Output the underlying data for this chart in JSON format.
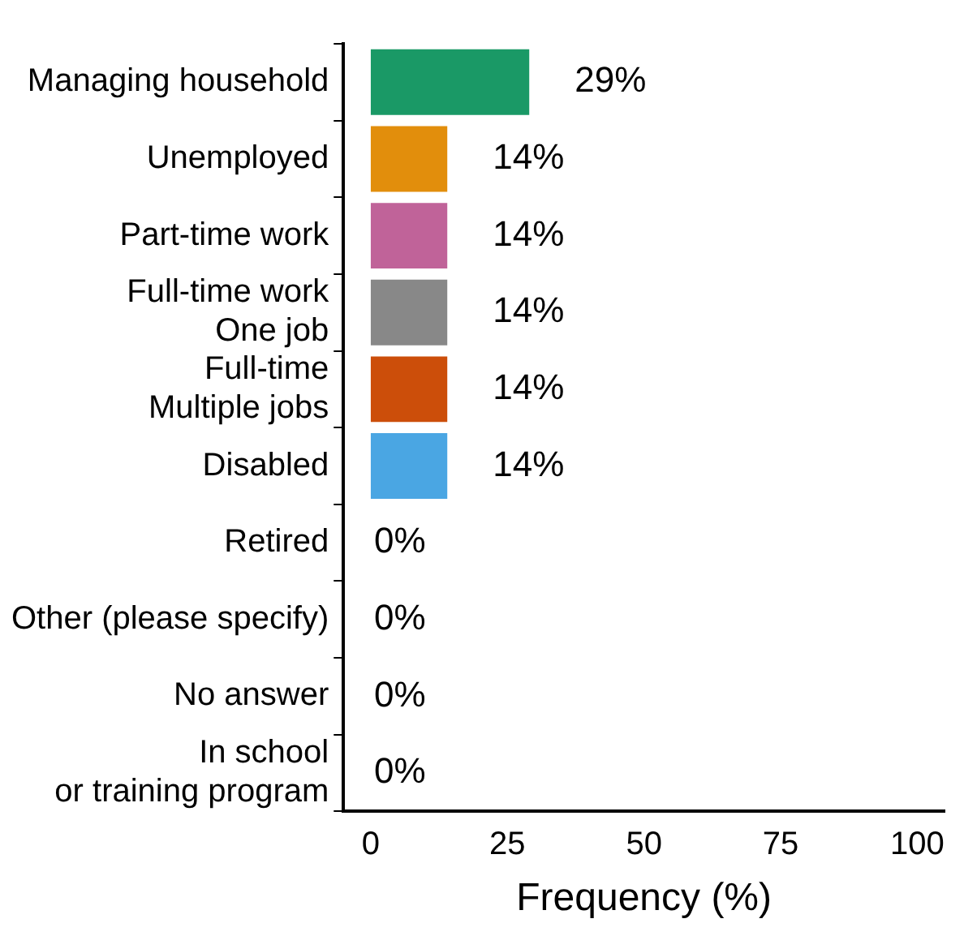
{
  "chart_data": {
    "type": "bar",
    "orientation": "horizontal",
    "xlabel": "Frequency (%)",
    "categories": [
      "Managing household",
      "Unemployed",
      "Part-time work",
      "Full-time work\nOne job",
      "Full-time\nMultiple jobs",
      "Disabled",
      "Retired",
      "Other (please specify)",
      "No answer",
      "In school\nor training program"
    ],
    "values": [
      29,
      14,
      14,
      14,
      14,
      14,
      0,
      0,
      0,
      0
    ],
    "colors": [
      "#1a9966",
      "#e28e0c",
      "#c06399",
      "#888888",
      "#cc4e0a",
      "#4aa6e3",
      "#888888",
      "#888888",
      "#888888",
      "#888888"
    ],
    "value_labels": [
      "29%",
      "14%",
      "14%",
      "14%",
      "14%",
      "14%",
      "0%",
      "0%",
      "0%",
      "0%"
    ],
    "xlim": [
      -5,
      105
    ],
    "xticks": [
      0,
      25,
      50,
      75,
      100
    ],
    "grid": false,
    "legend": false
  }
}
